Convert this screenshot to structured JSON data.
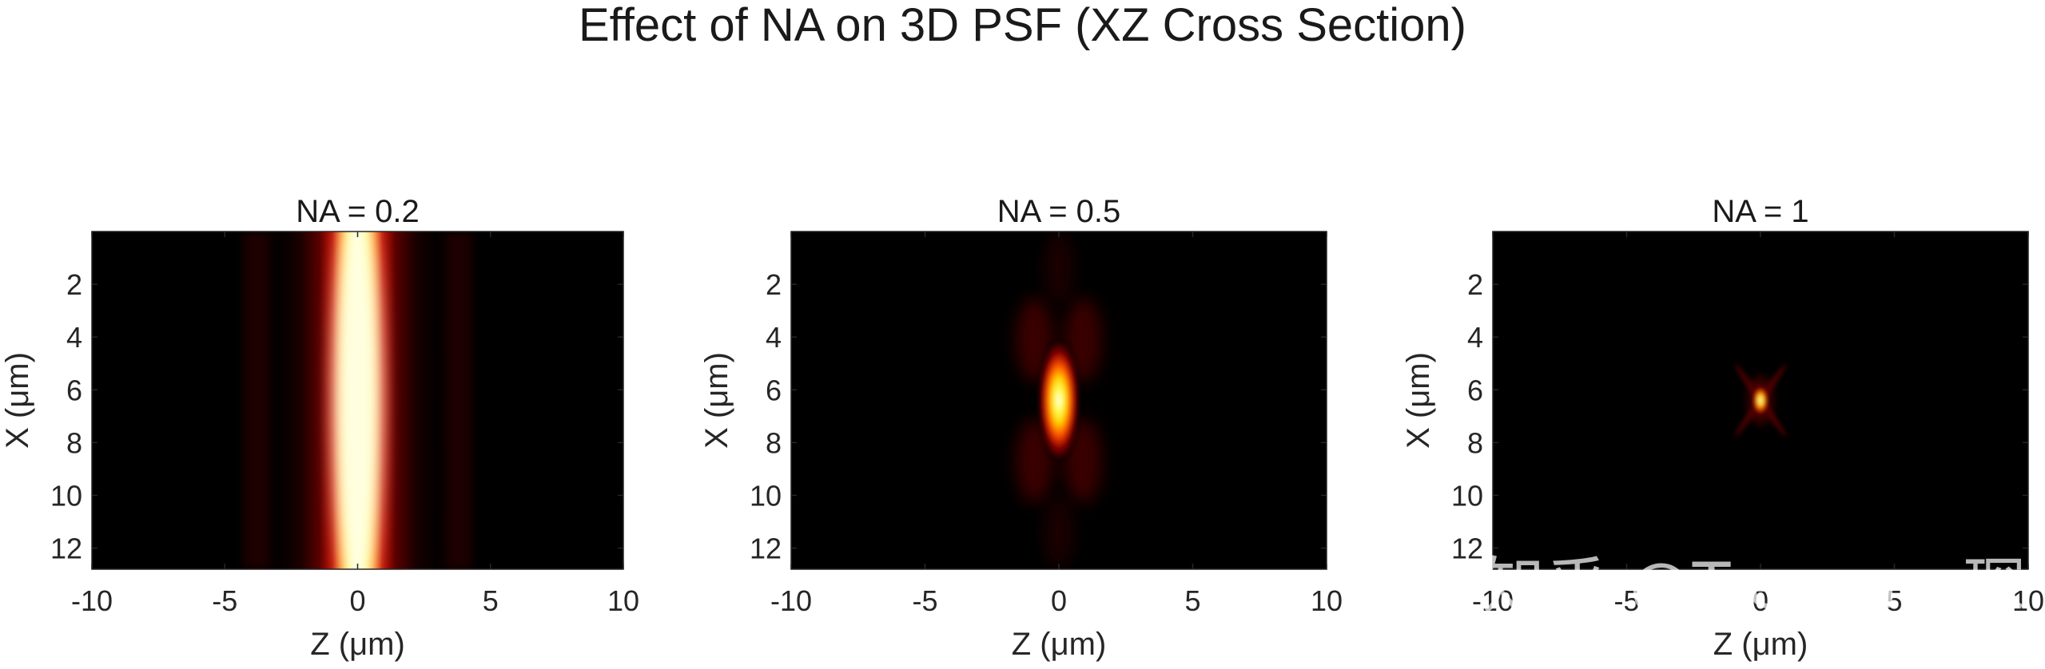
{
  "figure": {
    "title": "Effect of NA on 3D PSF (XZ Cross Section)",
    "watermark": "知乎 @Treasure琛",
    "colors": {
      "background": "#ffffff",
      "axis": "#262626",
      "colormap": "hot"
    }
  },
  "chart_data": [
    {
      "type": "heatmap",
      "title": "NA = 0.2",
      "na": 0.2,
      "xlabel": "Z (μm)",
      "ylabel": "X (μm)",
      "xlim": [
        -10,
        10
      ],
      "ylim": [
        0,
        12.8
      ],
      "y_reversed": true,
      "xticks": [
        -10,
        -5,
        0,
        5,
        10
      ],
      "yticks": [
        2,
        4,
        6,
        8,
        10,
        12
      ],
      "colormap": "hot",
      "center": [
        0,
        6.4
      ]
    },
    {
      "type": "heatmap",
      "title": "NA = 0.5",
      "na": 0.5,
      "xlabel": "Z (μm)",
      "ylabel": "X (μm)",
      "xlim": [
        -10,
        10
      ],
      "ylim": [
        0,
        12.8
      ],
      "y_reversed": true,
      "xticks": [
        -10,
        -5,
        0,
        5,
        10
      ],
      "yticks": [
        2,
        4,
        6,
        8,
        10,
        12
      ],
      "colormap": "hot",
      "center": [
        0,
        6.4
      ]
    },
    {
      "type": "heatmap",
      "title": "NA = 1",
      "na": 1,
      "xlabel": "Z (μm)",
      "ylabel": "X (μm)",
      "xlim": [
        -10,
        10
      ],
      "ylim": [
        0,
        12.8
      ],
      "y_reversed": true,
      "xticks": [
        -10,
        -5,
        0,
        5,
        10
      ],
      "yticks": [
        2,
        4,
        6,
        8,
        10,
        12
      ],
      "colormap": "hot",
      "center": [
        0,
        6.4
      ]
    }
  ]
}
